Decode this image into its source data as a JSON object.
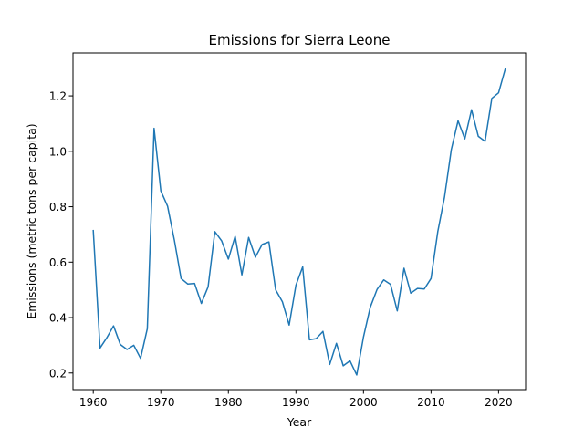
{
  "chart_data": {
    "type": "line",
    "title": "Emissions for Sierra Leone",
    "xlabel": "Year",
    "ylabel": "Emissions (metric tons per capita)",
    "xlim": [
      1957,
      2024
    ],
    "ylim": [
      0.14,
      1.355
    ],
    "xticks": [
      1960,
      1970,
      1980,
      1990,
      2000,
      2010,
      2020
    ],
    "yticks": [
      0.2,
      0.4,
      0.6,
      0.8,
      1.0,
      1.2
    ],
    "ytick_labels": [
      "0.2",
      "0.4",
      "0.6",
      "0.8",
      "1.0",
      "1.2"
    ],
    "grid": false,
    "series": [
      {
        "color": "#1f77b4",
        "x": [
          1960,
          1961,
          1962,
          1963,
          1964,
          1965,
          1966,
          1967,
          1968,
          1969,
          1970,
          1971,
          1972,
          1973,
          1974,
          1975,
          1976,
          1977,
          1978,
          1979,
          1980,
          1981,
          1982,
          1983,
          1984,
          1985,
          1986,
          1987,
          1988,
          1989,
          1990,
          1991,
          1992,
          1993,
          1994,
          1995,
          1996,
          1997,
          1998,
          1999,
          2000,
          2001,
          2002,
          2003,
          2004,
          2005,
          2006,
          2007,
          2008,
          2009,
          2010,
          2011,
          2012,
          2013,
          2014,
          2015,
          2016,
          2017,
          2018,
          2019,
          2020,
          2021
        ],
        "y": [
          0.714,
          0.29,
          0.327,
          0.37,
          0.303,
          0.285,
          0.3,
          0.253,
          0.36,
          1.083,
          0.857,
          0.802,
          0.68,
          0.541,
          0.521,
          0.523,
          0.451,
          0.511,
          0.71,
          0.677,
          0.611,
          0.693,
          0.554,
          0.689,
          0.618,
          0.664,
          0.673,
          0.5,
          0.457,
          0.373,
          0.517,
          0.583,
          0.32,
          0.324,
          0.35,
          0.231,
          0.307,
          0.226,
          0.244,
          0.193,
          0.33,
          0.437,
          0.501,
          0.536,
          0.52,
          0.424,
          0.578,
          0.488,
          0.505,
          0.503,
          0.541,
          0.71,
          0.835,
          1.006,
          1.11,
          1.045,
          1.15,
          1.054,
          1.036,
          1.191,
          1.211,
          1.298
        ]
      }
    ]
  }
}
